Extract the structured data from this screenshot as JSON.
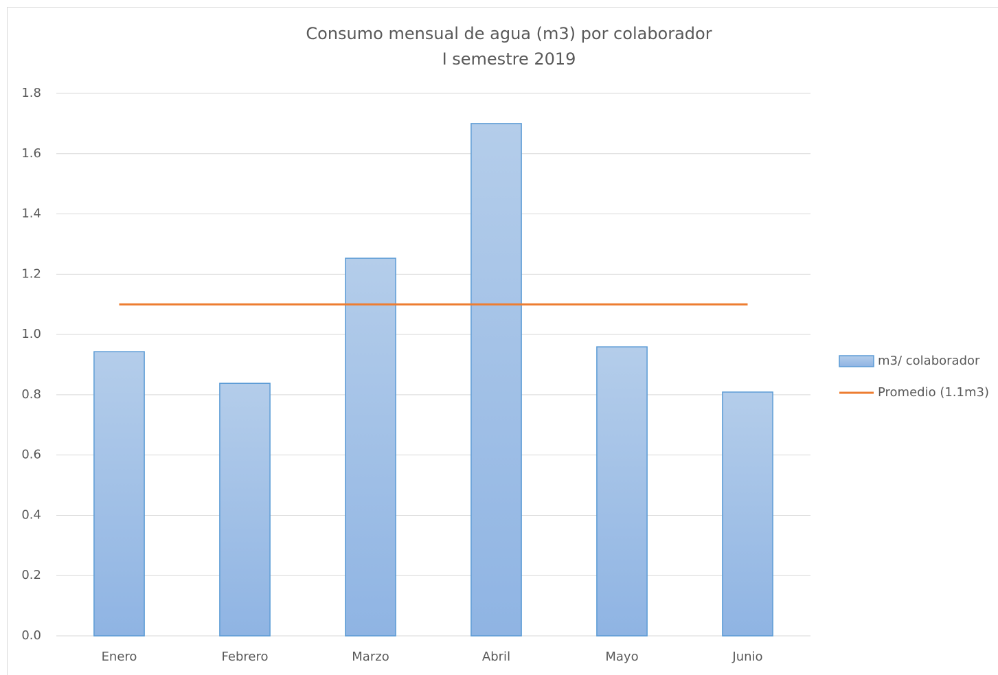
{
  "chart_data": {
    "type": "bar",
    "title": "Consumo mensual de agua (m3) por colaborador",
    "subtitle": "I semestre 2019",
    "categories": [
      "Enero",
      "Febrero",
      "Marzo",
      "Abril",
      "Mayo",
      "Junio"
    ],
    "series": [
      {
        "name": "m3/ colaborador",
        "type": "bar",
        "color": "#5b9bd5",
        "values": [
          0.943,
          0.838,
          1.253,
          1.7,
          0.959,
          0.809
        ]
      },
      {
        "name": "Promedio (1.1m3)",
        "type": "line",
        "color": "#ed7d31",
        "values": [
          1.1,
          1.1,
          1.1,
          1.1,
          1.1,
          1.1
        ]
      }
    ],
    "ylim": [
      0,
      1.8
    ],
    "yticks": [
      {
        "value": 0,
        "label": "0.0"
      },
      0.2,
      0.4,
      0.6,
      0.8,
      {
        "value": 1,
        "label": "1.0"
      },
      1.2,
      1.4,
      1.6,
      1.8
    ],
    "grid": true,
    "legend": "right"
  }
}
